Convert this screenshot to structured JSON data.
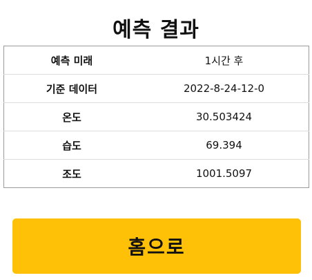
{
  "header": {
    "title": "예측 결과"
  },
  "result_table": {
    "rows": [
      {
        "label": "예측 미래",
        "value": "1시간 후"
      },
      {
        "label": "기준 데이터",
        "value": "2022-8-24-12-0"
      },
      {
        "label": "온도",
        "value": "30.503424"
      },
      {
        "label": "습도",
        "value": "69.394"
      },
      {
        "label": "조도",
        "value": "1001.5097"
      }
    ]
  },
  "actions": {
    "home_label": "홈으로"
  },
  "colors": {
    "button_background": "#ffc107",
    "table_border": "#9a9a9a",
    "row_divider": "#dcdcdc",
    "text": "#111111"
  }
}
